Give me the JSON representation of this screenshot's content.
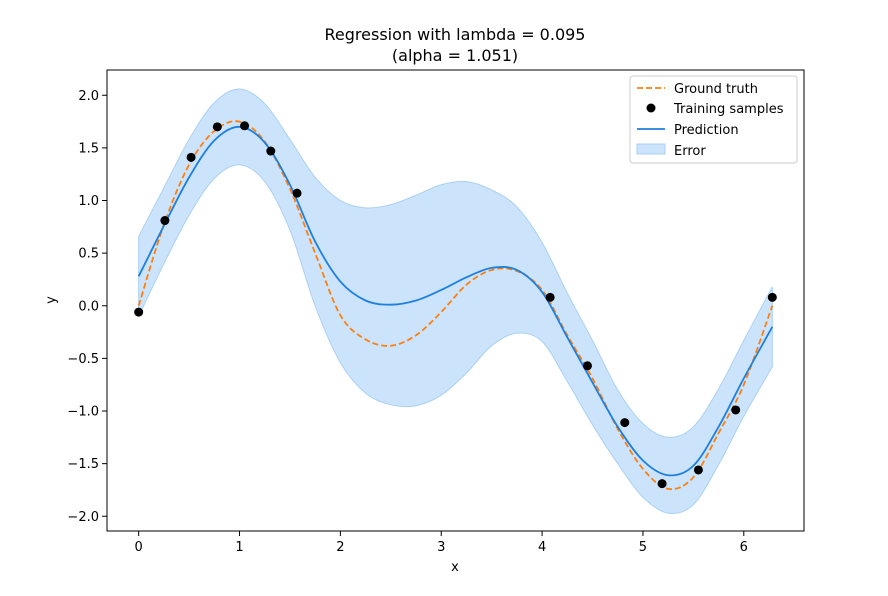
{
  "chart_data": {
    "type": "line",
    "title_line1": "Regression with lambda = 0.095",
    "title_line2": "(alpha = 1.051)",
    "xlabel": "x",
    "ylabel": "y",
    "xlim": [
      -0.314,
      6.597
    ],
    "ylim": [
      -2.14,
      2.24
    ],
    "x_ticks": [
      0,
      1,
      2,
      3,
      4,
      5,
      6
    ],
    "y_ticks": [
      -2.0,
      -1.5,
      -1.0,
      -0.5,
      0.0,
      0.5,
      1.0,
      1.5,
      2.0
    ],
    "x_tick_labels": [
      "0",
      "1",
      "2",
      "3",
      "4",
      "5",
      "6"
    ],
    "y_tick_labels": [
      "−2.0",
      "−1.5",
      "−1.0",
      "−0.5",
      "0.0",
      "0.5",
      "1.0",
      "1.5",
      "2.0"
    ],
    "legend": {
      "position": "top-right",
      "items": [
        "Ground truth",
        "Training samples",
        "Prediction",
        "Error"
      ]
    },
    "colors": {
      "ground_truth": "#ff7f0e",
      "prediction": "#1f7fdf",
      "error_fill": "#cce4fb",
      "error_edge": "#a9d0f5",
      "samples": "#000000"
    },
    "series": [
      {
        "name": "Ground truth",
        "style": "dashed",
        "x": [
          0.0,
          0.25,
          0.5,
          0.75,
          1.0,
          1.25,
          1.5,
          1.75,
          2.0,
          2.25,
          2.5,
          2.75,
          3.0,
          3.25,
          3.5,
          3.75,
          4.0,
          4.25,
          4.5,
          4.75,
          5.0,
          5.25,
          5.5,
          5.75,
          6.0,
          6.283
        ],
        "y": [
          0.0,
          0.77,
          1.34,
          1.66,
          1.75,
          1.56,
          1.11,
          0.5,
          -0.09,
          -0.32,
          -0.38,
          -0.28,
          -0.06,
          0.2,
          0.34,
          0.33,
          0.15,
          -0.28,
          -0.69,
          -1.17,
          -1.55,
          -1.74,
          -1.63,
          -1.21,
          -0.75,
          0.0
        ]
      },
      {
        "name": "Prediction",
        "style": "solid",
        "x": [
          0.0,
          0.25,
          0.5,
          0.75,
          1.0,
          1.25,
          1.5,
          1.75,
          2.0,
          2.25,
          2.5,
          2.75,
          3.0,
          3.25,
          3.5,
          3.75,
          4.0,
          4.25,
          4.5,
          4.75,
          5.0,
          5.25,
          5.5,
          5.75,
          6.0,
          6.283
        ],
        "y": [
          0.28,
          0.76,
          1.22,
          1.57,
          1.7,
          1.55,
          1.15,
          0.61,
          0.23,
          0.05,
          0.01,
          0.05,
          0.15,
          0.27,
          0.36,
          0.34,
          0.13,
          -0.3,
          -0.73,
          -1.15,
          -1.47,
          -1.61,
          -1.52,
          -1.15,
          -0.69,
          -0.2
        ]
      }
    ],
    "error_band": {
      "name": "Error",
      "x": [
        0.0,
        0.25,
        0.5,
        0.75,
        1.0,
        1.25,
        1.5,
        1.75,
        2.0,
        2.25,
        2.5,
        2.75,
        3.0,
        3.25,
        3.5,
        3.75,
        4.0,
        4.25,
        4.5,
        4.75,
        5.0,
        5.25,
        5.5,
        5.75,
        6.0,
        6.283
      ],
      "upper": [
        0.66,
        1.12,
        1.58,
        1.93,
        2.06,
        1.92,
        1.58,
        1.22,
        1.0,
        0.93,
        0.96,
        1.05,
        1.15,
        1.18,
        1.1,
        0.94,
        0.6,
        0.12,
        -0.33,
        -0.8,
        -1.12,
        -1.25,
        -1.15,
        -0.79,
        -0.33,
        0.18
      ],
      "lower": [
        -0.1,
        0.4,
        0.86,
        1.21,
        1.34,
        1.18,
        0.72,
        0.0,
        -0.54,
        -0.83,
        -0.94,
        -0.95,
        -0.85,
        -0.64,
        -0.38,
        -0.26,
        -0.34,
        -0.72,
        -1.13,
        -1.5,
        -1.82,
        -1.97,
        -1.89,
        -1.51,
        -1.05,
        -0.58
      ]
    },
    "samples": {
      "name": "Training samples",
      "x": [
        0.0,
        0.26,
        0.52,
        0.78,
        1.05,
        1.31,
        1.57,
        4.08,
        4.45,
        4.82,
        5.19,
        5.55,
        5.92,
        6.283
      ],
      "y": [
        -0.06,
        0.81,
        1.41,
        1.7,
        1.71,
        1.47,
        1.07,
        0.08,
        -0.57,
        -1.11,
        -1.69,
        -1.56,
        -0.99,
        0.08
      ]
    }
  }
}
